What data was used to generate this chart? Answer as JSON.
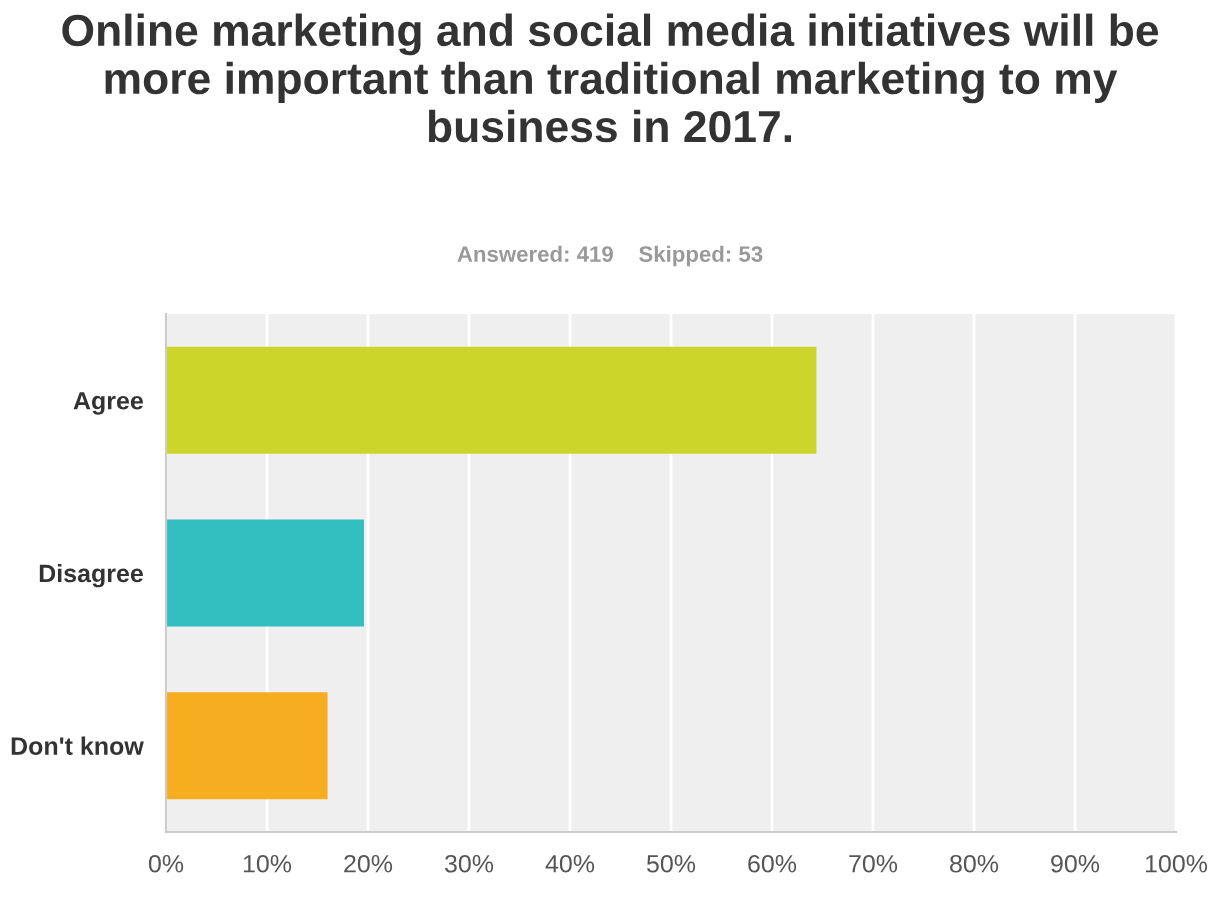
{
  "chart_data": {
    "type": "bar",
    "orientation": "horizontal",
    "title": "Online marketing and social media initiatives will be more important than traditional marketing to my business in 2017.",
    "subtitle": "Answered: 419    Skipped: 53",
    "categories": [
      "Agree",
      "Disagree",
      "Don't know"
    ],
    "values": [
      64.4,
      19.6,
      16.0
    ],
    "colors": [
      "#ccd52a",
      "#33bec0",
      "#f6ae20"
    ],
    "xlim": [
      0,
      100
    ],
    "xticks": [
      {
        "value": 0,
        "label": "0%"
      },
      {
        "value": 10,
        "label": "10%"
      },
      {
        "value": 20,
        "label": "20%"
      },
      {
        "value": 30,
        "label": "30%"
      },
      {
        "value": 40,
        "label": "40%"
      },
      {
        "value": 50,
        "label": "50%"
      },
      {
        "value": 60,
        "label": "60%"
      },
      {
        "value": 70,
        "label": "70%"
      },
      {
        "value": 80,
        "label": "80%"
      },
      {
        "value": 90,
        "label": "90%"
      },
      {
        "value": 100,
        "label": "100%"
      }
    ],
    "grid": "x"
  }
}
